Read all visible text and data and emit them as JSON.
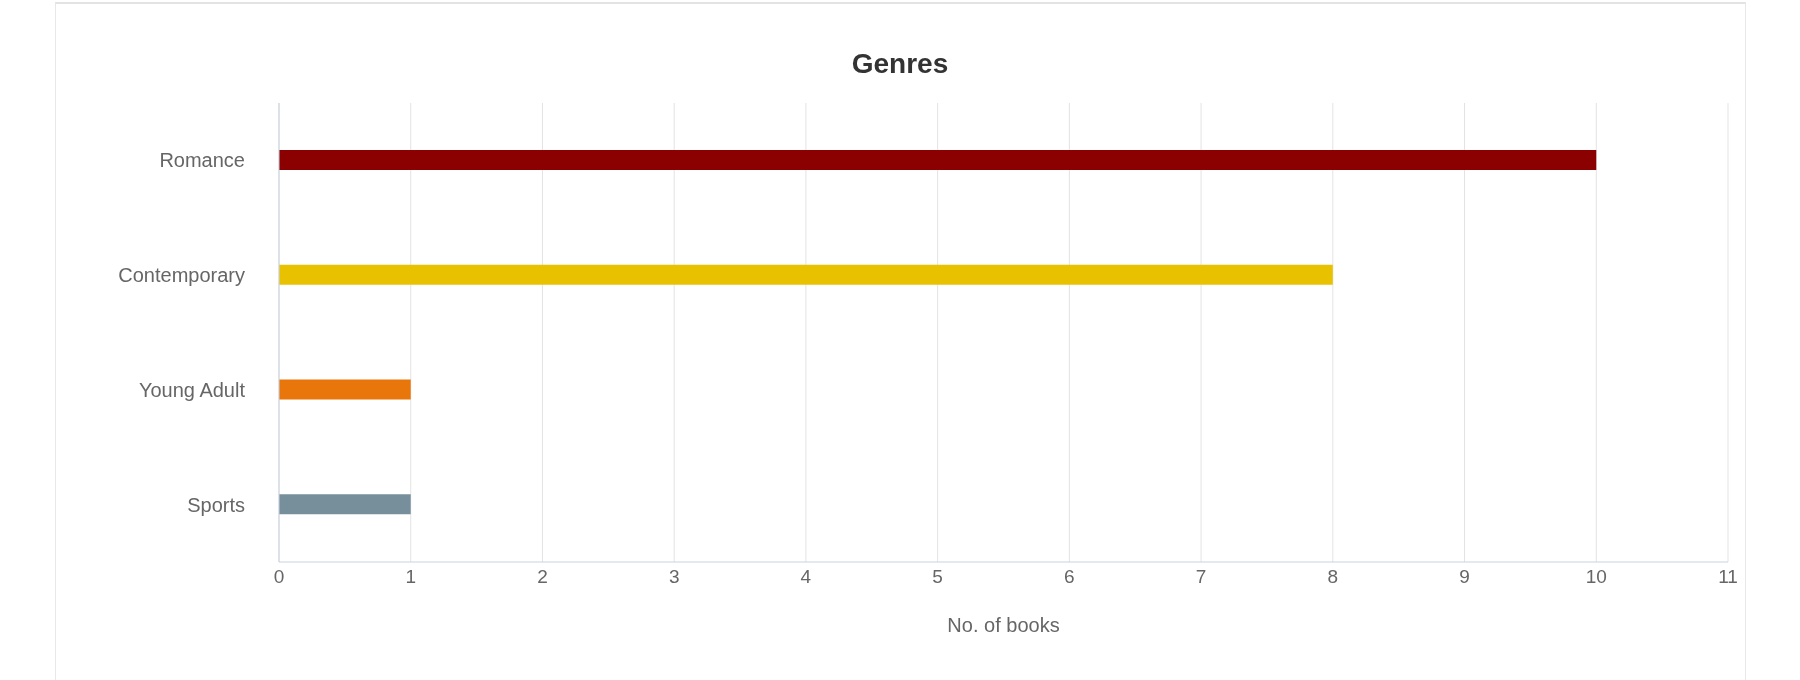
{
  "chart_data": {
    "type": "bar",
    "orientation": "horizontal",
    "title": "Genres",
    "xlabel": "No. of books",
    "categories": [
      "Romance",
      "Contemporary",
      "Young Adult",
      "Sports"
    ],
    "values": [
      10,
      8,
      1,
      1
    ],
    "colors": [
      "#8b0000",
      "#e8c200",
      "#e8760a",
      "#778f9b"
    ],
    "xlim": [
      0,
      11
    ],
    "xticks": [
      0,
      1,
      2,
      3,
      4,
      5,
      6,
      7,
      8,
      9,
      10,
      11
    ],
    "grid": "x"
  }
}
